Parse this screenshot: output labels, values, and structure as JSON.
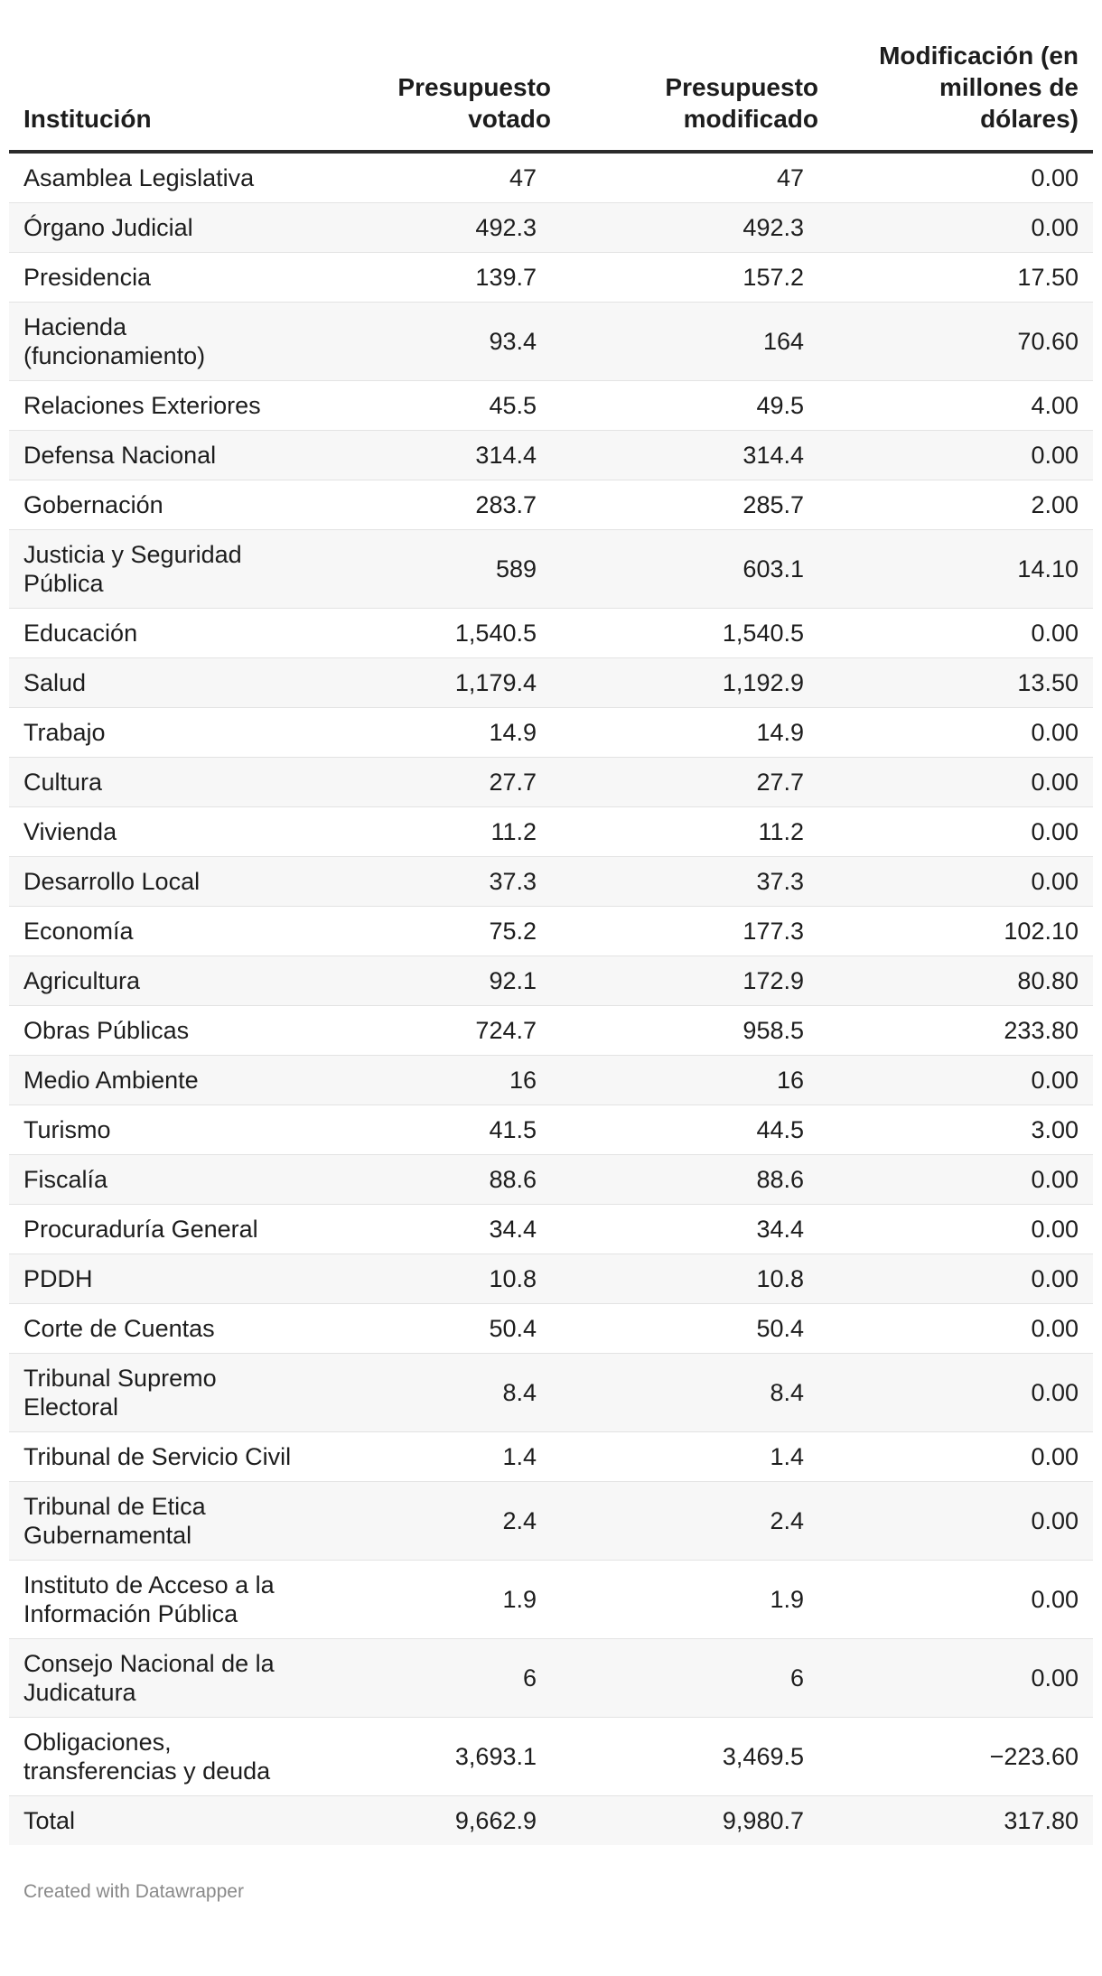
{
  "chart_data": {
    "type": "table",
    "columns": [
      "Institución",
      "Presupuesto votado",
      "Presupuesto modificado",
      "Modificación (en millones de dólares)"
    ],
    "rows": [
      [
        "Asamblea Legislativa",
        "47",
        "47",
        "0.00"
      ],
      [
        "Órgano Judicial",
        "492.3",
        "492.3",
        "0.00"
      ],
      [
        "Presidencia",
        "139.7",
        "157.2",
        "17.50"
      ],
      [
        "Hacienda (funcionamiento)",
        "93.4",
        "164",
        "70.60"
      ],
      [
        "Relaciones Exteriores",
        "45.5",
        "49.5",
        "4.00"
      ],
      [
        "Defensa Nacional",
        "314.4",
        "314.4",
        "0.00"
      ],
      [
        "Gobernación",
        "283.7",
        "285.7",
        "2.00"
      ],
      [
        "Justicia y Seguridad Pública",
        "589",
        "603.1",
        "14.10"
      ],
      [
        "Educación",
        "1,540.5",
        "1,540.5",
        "0.00"
      ],
      [
        "Salud",
        "1,179.4",
        "1,192.9",
        "13.50"
      ],
      [
        "Trabajo",
        "14.9",
        "14.9",
        "0.00"
      ],
      [
        "Cultura",
        "27.7",
        "27.7",
        "0.00"
      ],
      [
        "Vivienda",
        "11.2",
        "11.2",
        "0.00"
      ],
      [
        "Desarrollo Local",
        "37.3",
        "37.3",
        "0.00"
      ],
      [
        "Economía",
        "75.2",
        "177.3",
        "102.10"
      ],
      [
        "Agricultura",
        "92.1",
        "172.9",
        "80.80"
      ],
      [
        "Obras Públicas",
        "724.7",
        "958.5",
        "233.80"
      ],
      [
        "Medio Ambiente",
        "16",
        "16",
        "0.00"
      ],
      [
        "Turismo",
        "41.5",
        "44.5",
        "3.00"
      ],
      [
        "Fiscalía",
        "88.6",
        "88.6",
        "0.00"
      ],
      [
        "Procuraduría General",
        "34.4",
        "34.4",
        "0.00"
      ],
      [
        "PDDH",
        "10.8",
        "10.8",
        "0.00"
      ],
      [
        "Corte de Cuentas",
        "50.4",
        "50.4",
        "0.00"
      ],
      [
        "Tribunal Supremo Electoral",
        "8.4",
        "8.4",
        "0.00"
      ],
      [
        "Tribunal de Servicio Civil",
        "1.4",
        "1.4",
        "0.00"
      ],
      [
        "Tribunal de Etica Gubernamental",
        "2.4",
        "2.4",
        "0.00"
      ],
      [
        "Instituto de Acceso a la Información Pública",
        "1.9",
        "1.9",
        "0.00"
      ],
      [
        "Consejo Nacional de la Judicatura",
        "6",
        "6",
        "0.00"
      ],
      [
        "Obligaciones, transferencias y deuda",
        "3,693.1",
        "3,469.5",
        "−223.60"
      ],
      [
        "Total",
        "9,662.9",
        "9,980.7",
        "317.80"
      ]
    ]
  },
  "footer": {
    "credit": "Created with Datawrapper"
  }
}
